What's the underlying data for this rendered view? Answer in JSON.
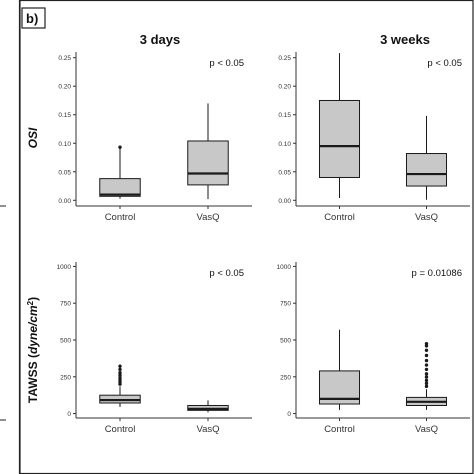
{
  "panel_label": "b)",
  "columns": [
    "3 days",
    "3 weeks"
  ],
  "rows": [
    {
      "label": "OSI",
      "label_style": "italic"
    },
    {
      "label_prefix": "TAWSS (",
      "label_italic": "dyne/cm",
      "label_sup": "2",
      "label_suffix": ")"
    }
  ],
  "colors": {
    "box_fill": "#c8c8c8",
    "stroke": "#1a1a1a",
    "border": "#222222",
    "axis": "#333333"
  },
  "chart_data": [
    {
      "type": "box",
      "row": "OSI",
      "column": "3 days",
      "categories": [
        "Control",
        "VasQ"
      ],
      "ylim": [
        -0.01,
        0.26
      ],
      "yticks": [
        0.0,
        0.05,
        0.1,
        0.15,
        0.2,
        0.25
      ],
      "ytick_labels": [
        "0.00",
        "0.05",
        "0.10",
        "0.15",
        "0.20",
        "0.25"
      ],
      "annotation": "p < 0.05",
      "boxes": [
        {
          "category": "Control",
          "whisker_low": 0.003,
          "q1": 0.007,
          "median": 0.01,
          "q3": 0.038,
          "whisker_high": 0.09,
          "outliers": [
            0.093
          ]
        },
        {
          "category": "VasQ",
          "whisker_low": 0.002,
          "q1": 0.027,
          "median": 0.047,
          "q3": 0.104,
          "whisker_high": 0.17,
          "outliers": []
        }
      ]
    },
    {
      "type": "box",
      "row": "OSI",
      "column": "3 weeks",
      "categories": [
        "Control",
        "VasQ"
      ],
      "ylim": [
        -0.01,
        0.26
      ],
      "yticks": [
        0.0,
        0.05,
        0.1,
        0.15,
        0.2,
        0.25
      ],
      "ytick_labels": [
        "0.00",
        "0.05",
        "0.10",
        "0.15",
        "0.20",
        "0.25"
      ],
      "annotation": "p < 0.05",
      "boxes": [
        {
          "category": "Control",
          "whisker_low": 0.004,
          "q1": 0.04,
          "median": 0.095,
          "q3": 0.175,
          "whisker_high": 0.258,
          "outliers": []
        },
        {
          "category": "VasQ",
          "whisker_low": 0.001,
          "q1": 0.025,
          "median": 0.046,
          "q3": 0.082,
          "whisker_high": 0.148,
          "outliers": []
        }
      ]
    },
    {
      "type": "box",
      "row": "TAWSS",
      "column": "3 days",
      "categories": [
        "Control",
        "VasQ"
      ],
      "ylim": [
        -30,
        1030
      ],
      "yticks": [
        0,
        250,
        500,
        750,
        1000
      ],
      "ytick_labels": [
        "0",
        "250",
        "500",
        "750",
        "1000"
      ],
      "annotation": "p < 0.05",
      "boxes": [
        {
          "category": "Control",
          "whisker_low": 45,
          "q1": 72,
          "median": 92,
          "q3": 125,
          "whisker_high": 185,
          "outliers": [
            200,
            215,
            230,
            245,
            262,
            278,
            300,
            322
          ]
        },
        {
          "category": "VasQ",
          "whisker_low": 8,
          "q1": 22,
          "median": 32,
          "q3": 55,
          "whisker_high": 90,
          "outliers": []
        }
      ]
    },
    {
      "type": "box",
      "row": "TAWSS",
      "column": "3 weeks",
      "categories": [
        "Control",
        "VasQ"
      ],
      "ylim": [
        -30,
        1030
      ],
      "yticks": [
        0,
        250,
        500,
        750,
        1000
      ],
      "ytick_labels": [
        "0",
        "250",
        "500",
        "750",
        "1000"
      ],
      "annotation": "p = 0.01086",
      "boxes": [
        {
          "category": "Control",
          "whisker_low": 25,
          "q1": 65,
          "median": 100,
          "q3": 290,
          "whisker_high": 570,
          "outliers": []
        },
        {
          "category": "VasQ",
          "whisker_low": 25,
          "q1": 55,
          "median": 80,
          "q3": 110,
          "whisker_high": 165,
          "outliers": [
            185,
            205,
            225,
            248,
            270,
            300,
            330,
            360,
            395,
            430,
            460,
            475
          ]
        }
      ]
    }
  ]
}
